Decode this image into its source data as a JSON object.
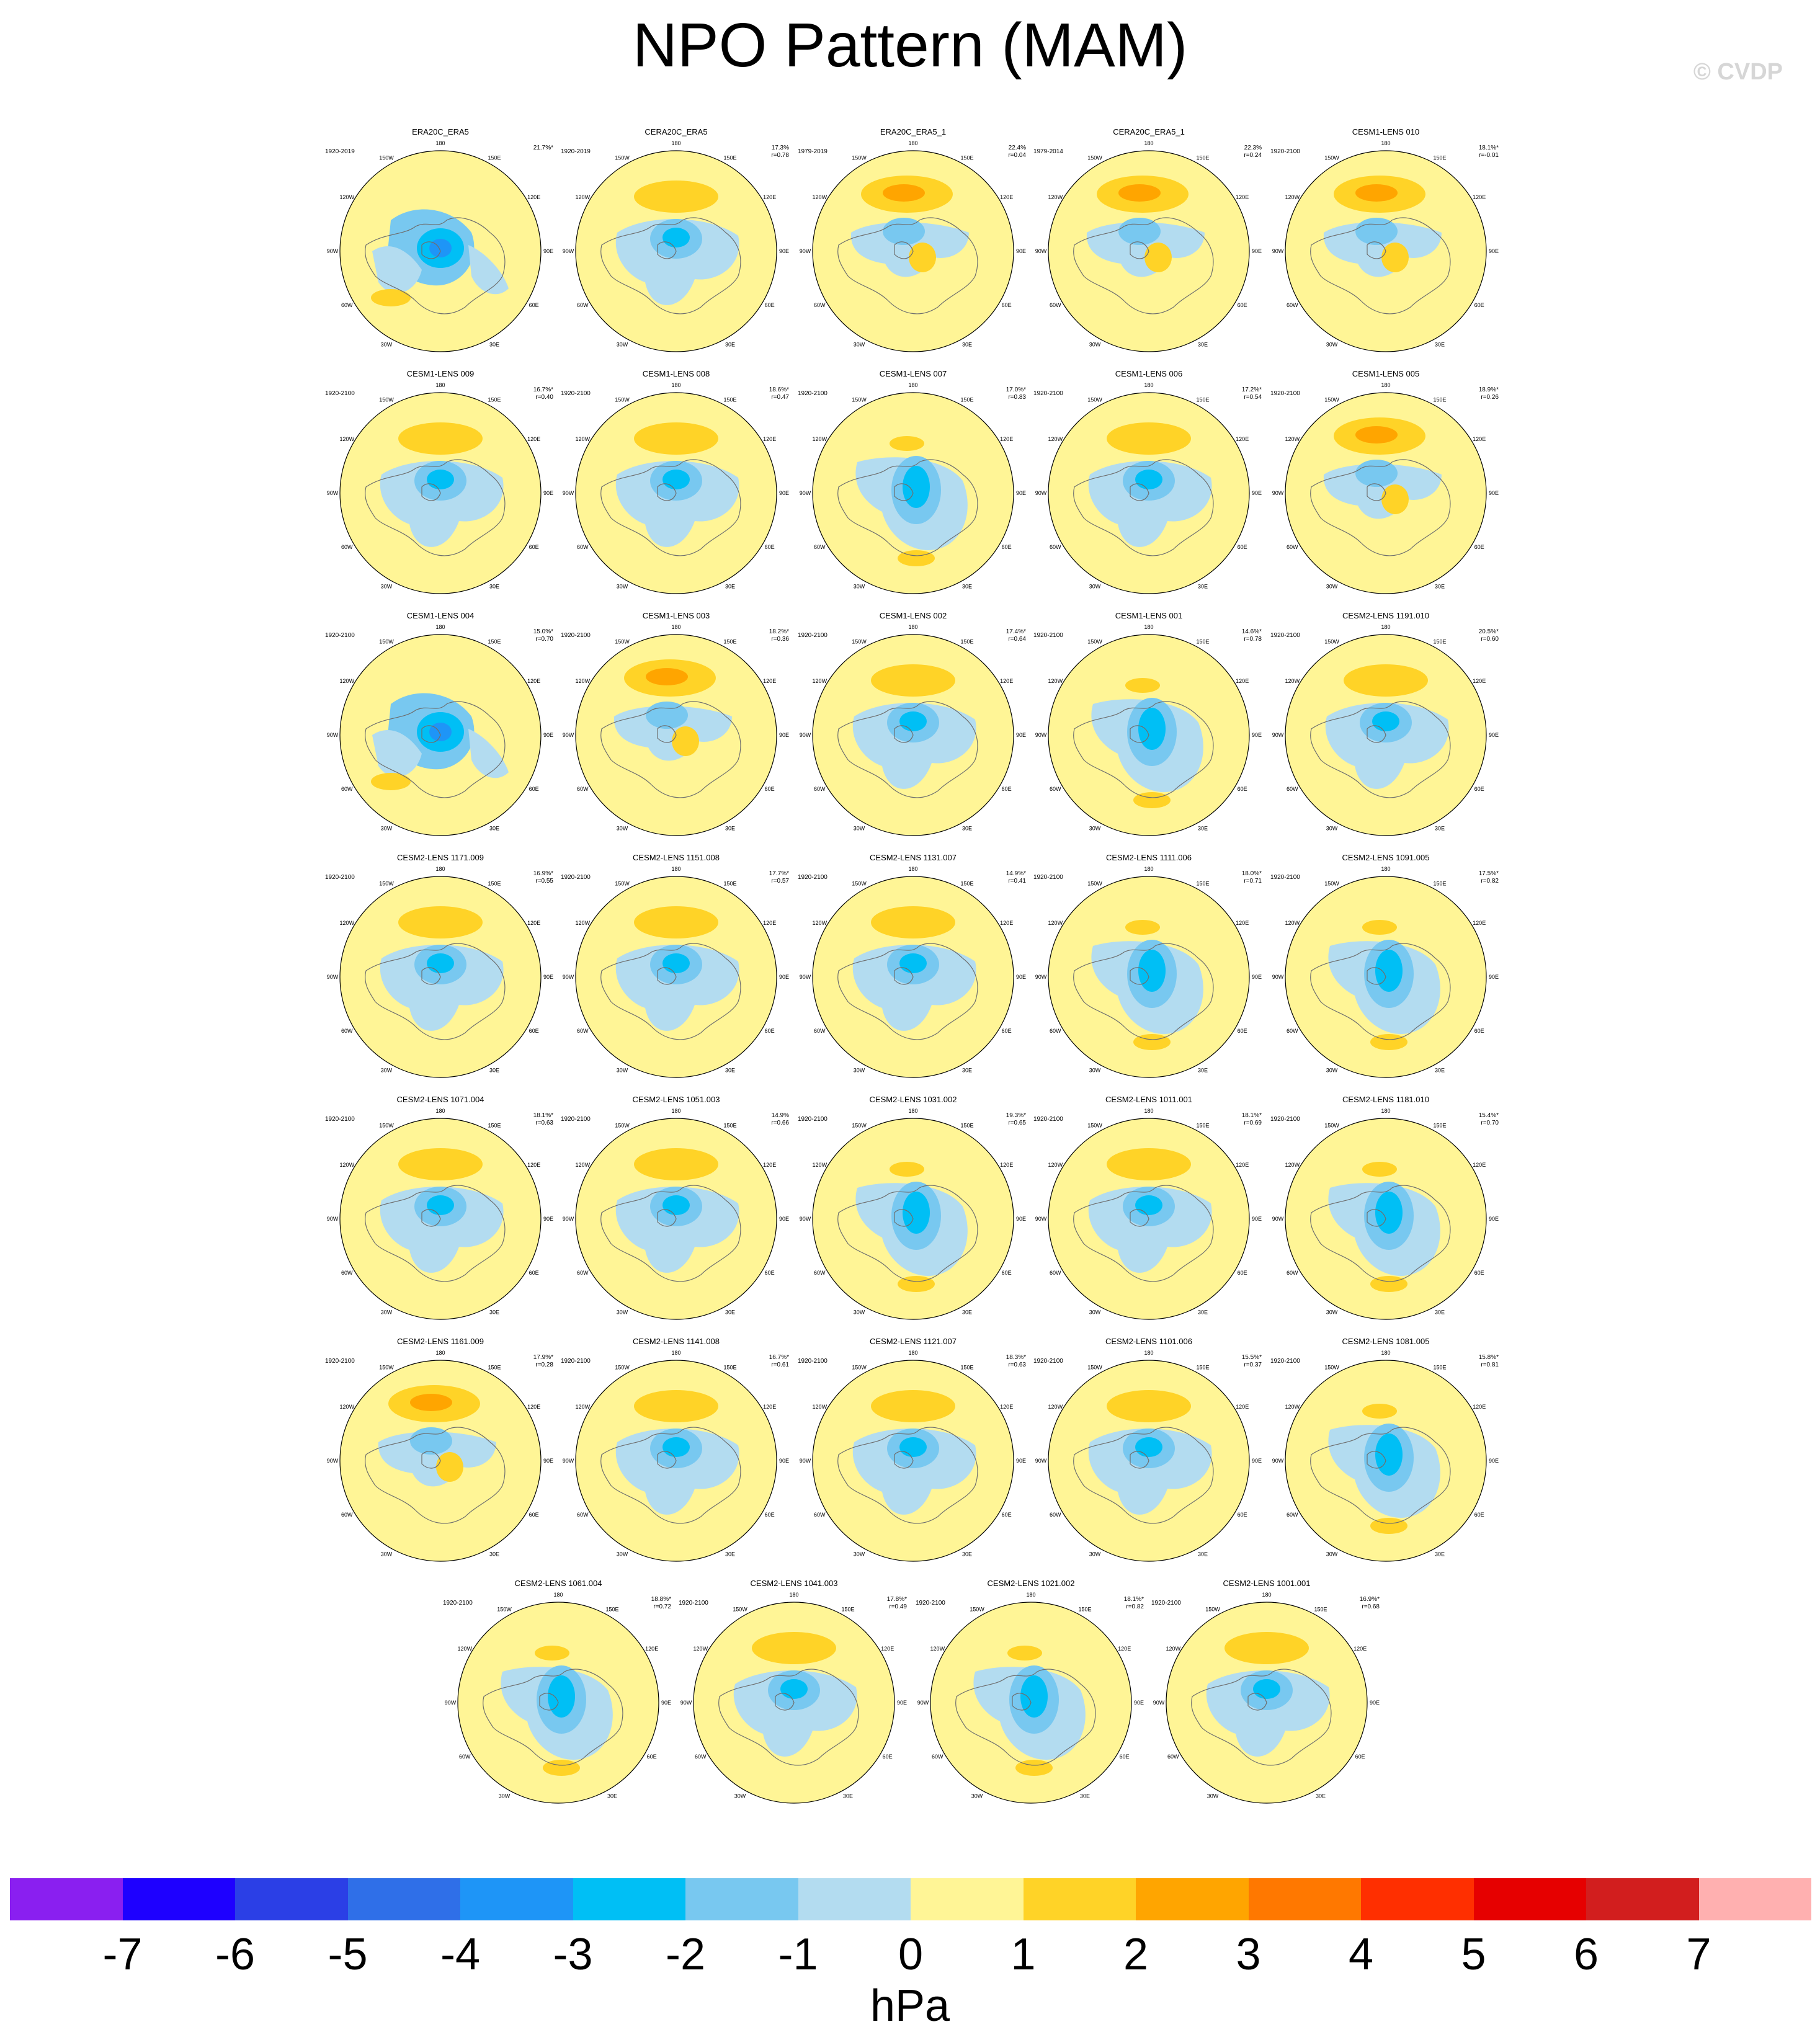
{
  "title": "NPO Pattern (MAM)",
  "watermark": "© CVDP",
  "units": "hPa",
  "colorbar": {
    "labels": [
      "-7",
      "-6",
      "-5",
      "-4",
      "-3",
      "-2",
      "-1",
      "0",
      "1",
      "2",
      "3",
      "4",
      "5",
      "6",
      "7"
    ],
    "colors": [
      "#8a1ff0",
      "#1e00ff",
      "#2b3fe6",
      "#2f6fe8",
      "#1e95f7",
      "#00bff5",
      "#78c8f0",
      "#b3dcf0",
      "#fff596",
      "#ffd327",
      "#ffa500",
      "#ff7800",
      "#ff2f00",
      "#e60000",
      "#d21e1e",
      "#ffb0b0"
    ]
  },
  "panels": [
    {
      "title": "ERA20C_ERA5",
      "years": "1920-2019",
      "pct": "21.7%*",
      "r": "",
      "variant": 0
    },
    {
      "title": "CERA20C_ERA5",
      "years": "1920-2019",
      "pct": "17.3%",
      "r": "r=0.78",
      "variant": 1
    },
    {
      "title": "ERA20C_ERA5_1",
      "years": "1979-2019",
      "pct": "22.4%",
      "r": "r=0.04",
      "variant": 2
    },
    {
      "title": "CERA20C_ERA5_1",
      "years": "1979-2014",
      "pct": "22.3%",
      "r": "r=0.24",
      "variant": 2
    },
    {
      "title": "CESM1-LENS 010",
      "years": "1920-2100",
      "pct": "18.1%*",
      "r": "r=-0.01",
      "variant": 2
    },
    {
      "title": "CESM1-LENS 009",
      "years": "1920-2100",
      "pct": "16.7%*",
      "r": "r=0.40",
      "variant": 1
    },
    {
      "title": "CESM1-LENS 008",
      "years": "1920-2100",
      "pct": "18.6%*",
      "r": "r=0.47",
      "variant": 1
    },
    {
      "title": "CESM1-LENS 007",
      "years": "1920-2100",
      "pct": "17.0%*",
      "r": "r=0.83",
      "variant": 3
    },
    {
      "title": "CESM1-LENS 006",
      "years": "1920-2100",
      "pct": "17.2%*",
      "r": "r=0.54",
      "variant": 1
    },
    {
      "title": "CESM1-LENS 005",
      "years": "1920-2100",
      "pct": "18.9%*",
      "r": "r=0.26",
      "variant": 2
    },
    {
      "title": "CESM1-LENS 004",
      "years": "1920-2100",
      "pct": "15.0%*",
      "r": "r=0.70",
      "variant": 0
    },
    {
      "title": "CESM1-LENS 003",
      "years": "1920-2100",
      "pct": "18.2%*",
      "r": "r=0.36",
      "variant": 2
    },
    {
      "title": "CESM1-LENS 002",
      "years": "1920-2100",
      "pct": "17.4%*",
      "r": "r=0.64",
      "variant": 1
    },
    {
      "title": "CESM1-LENS 001",
      "years": "1920-2100",
      "pct": "14.6%*",
      "r": "r=0.78",
      "variant": 3
    },
    {
      "title": "CESM2-LENS 1191.010",
      "years": "1920-2100",
      "pct": "20.5%*",
      "r": "r=0.60",
      "variant": 1
    },
    {
      "title": "CESM2-LENS 1171.009",
      "years": "1920-2100",
      "pct": "16.9%*",
      "r": "r=0.55",
      "variant": 1
    },
    {
      "title": "CESM2-LENS 1151.008",
      "years": "1920-2100",
      "pct": "17.7%*",
      "r": "r=0.57",
      "variant": 1
    },
    {
      "title": "CESM2-LENS 1131.007",
      "years": "1920-2100",
      "pct": "14.9%*",
      "r": "r=0.41",
      "variant": 1
    },
    {
      "title": "CESM2-LENS 1111.006",
      "years": "1920-2100",
      "pct": "18.0%*",
      "r": "r=0.71",
      "variant": 3
    },
    {
      "title": "CESM2-LENS 1091.005",
      "years": "1920-2100",
      "pct": "17.5%*",
      "r": "r=0.82",
      "variant": 3
    },
    {
      "title": "CESM2-LENS 1071.004",
      "years": "1920-2100",
      "pct": "18.1%*",
      "r": "r=0.63",
      "variant": 1
    },
    {
      "title": "CESM2-LENS 1051.003",
      "years": "1920-2100",
      "pct": "14.9%",
      "r": "r=0.66",
      "variant": 1
    },
    {
      "title": "CESM2-LENS 1031.002",
      "years": "1920-2100",
      "pct": "19.3%*",
      "r": "r=0.65",
      "variant": 3
    },
    {
      "title": "CESM2-LENS 1011.001",
      "years": "1920-2100",
      "pct": "18.1%*",
      "r": "r=0.69",
      "variant": 1
    },
    {
      "title": "CESM2-LENS 1181.010",
      "years": "1920-2100",
      "pct": "15.4%*",
      "r": "r=0.70",
      "variant": 3
    },
    {
      "title": "CESM2-LENS 1161.009",
      "years": "1920-2100",
      "pct": "17.9%*",
      "r": "r=0.28",
      "variant": 2
    },
    {
      "title": "CESM2-LENS 1141.008",
      "years": "1920-2100",
      "pct": "16.7%*",
      "r": "r=0.61",
      "variant": 1
    },
    {
      "title": "CESM2-LENS 1121.007",
      "years": "1920-2100",
      "pct": "18.3%*",
      "r": "r=0.63",
      "variant": 1
    },
    {
      "title": "CESM2-LENS 1101.006",
      "years": "1920-2100",
      "pct": "15.5%*",
      "r": "r=0.37",
      "variant": 1
    },
    {
      "title": "CESM2-LENS 1081.005",
      "years": "1920-2100",
      "pct": "15.8%*",
      "r": "r=0.81",
      "variant": 3
    },
    {
      "title": "CESM2-LENS 1061.004",
      "years": "1920-2100",
      "pct": "18.8%*",
      "r": "r=0.72",
      "variant": 3
    },
    {
      "title": "CESM2-LENS 1041.003",
      "years": "1920-2100",
      "pct": "17.8%*",
      "r": "r=0.49",
      "variant": 1
    },
    {
      "title": "CESM2-LENS 1021.002",
      "years": "1920-2100",
      "pct": "18.1%*",
      "r": "r=0.82",
      "variant": 3
    },
    {
      "title": "CESM2-LENS 1001.001",
      "years": "1920-2100",
      "pct": "16.9%*",
      "r": "r=0.68",
      "variant": 1
    }
  ],
  "lon_labels": [
    "180",
    "150E",
    "120E",
    "90E",
    "60E",
    "30E",
    "0",
    "30W",
    "60W",
    "90W",
    "120W",
    "150W"
  ]
}
